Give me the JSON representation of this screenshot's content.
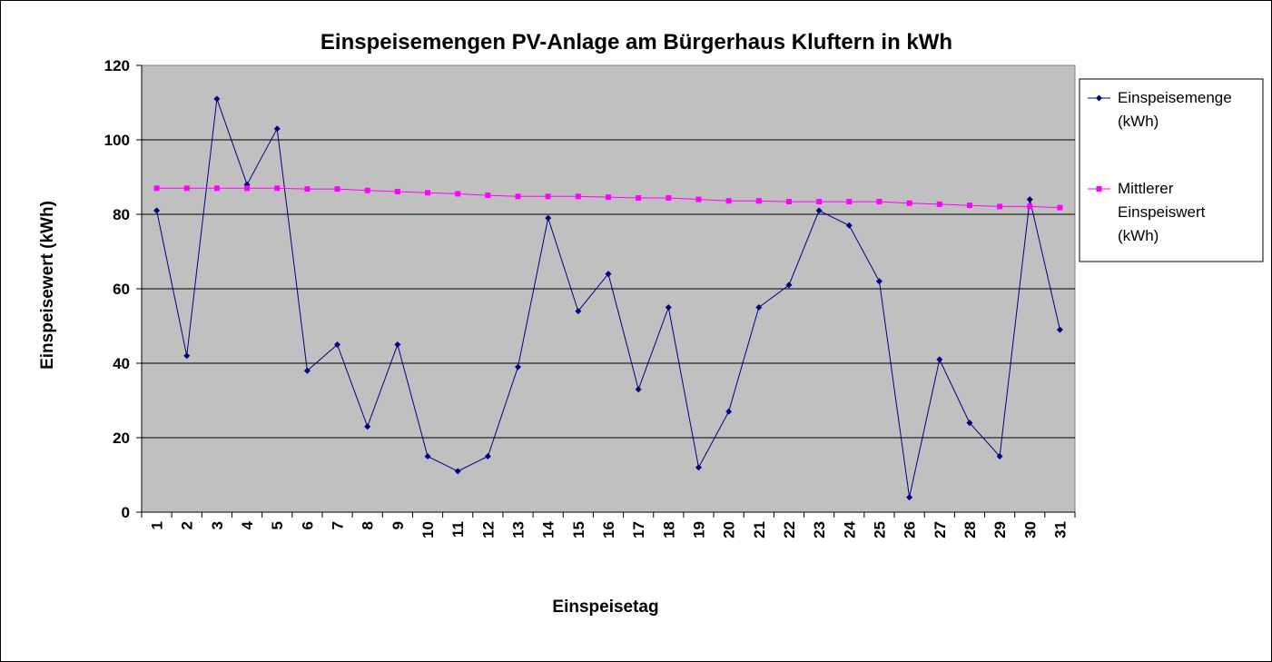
{
  "chart_data": {
    "type": "line",
    "title": "Einspeisemengen PV-Anlage am Bürgerhaus Kluftern in kWh",
    "xlabel": "Einspeisetag",
    "ylabel": "Einspeisewert (kWh)",
    "ylim": [
      0,
      120
    ],
    "yticks": [
      "0",
      "20",
      "40",
      "60",
      "80",
      "100",
      "120"
    ],
    "grid": true,
    "legend_position": "right",
    "categories": [
      "1",
      "2",
      "3",
      "4",
      "5",
      "6",
      "7",
      "8",
      "9",
      "10",
      "11",
      "12",
      "13",
      "14",
      "15",
      "16",
      "17",
      "18",
      "19",
      "20",
      "21",
      "22",
      "23",
      "24",
      "25",
      "26",
      "27",
      "28",
      "29",
      "30",
      "31"
    ],
    "series": [
      {
        "name_lines": [
          "Einspeisemenge",
          "(kWh)"
        ],
        "color": "#000080",
        "marker": "diamond",
        "values": [
          81,
          42,
          111,
          88,
          103,
          38,
          45,
          23,
          45,
          15,
          11,
          15,
          39,
          79,
          54,
          64,
          33,
          55,
          12,
          27,
          55,
          61,
          81,
          77,
          62,
          4,
          41,
          24,
          15,
          84,
          49
        ]
      },
      {
        "name_lines": [
          "Mittlerer",
          "Einspeiswert",
          "(kWh)"
        ],
        "color": "#ff00ff",
        "marker": "square",
        "values": [
          87,
          87,
          87,
          87,
          87,
          86.8,
          86.8,
          86.4,
          86.1,
          85.8,
          85.5,
          85.1,
          84.8,
          84.8,
          84.8,
          84.6,
          84.4,
          84.4,
          84,
          83.6,
          83.6,
          83.4,
          83.4,
          83.4,
          83.4,
          83,
          82.7,
          82.4,
          82.1,
          82.1,
          81.8
        ]
      }
    ],
    "colors": {
      "plot_background": "#c0c0c0",
      "gridline": "#000000"
    }
  }
}
